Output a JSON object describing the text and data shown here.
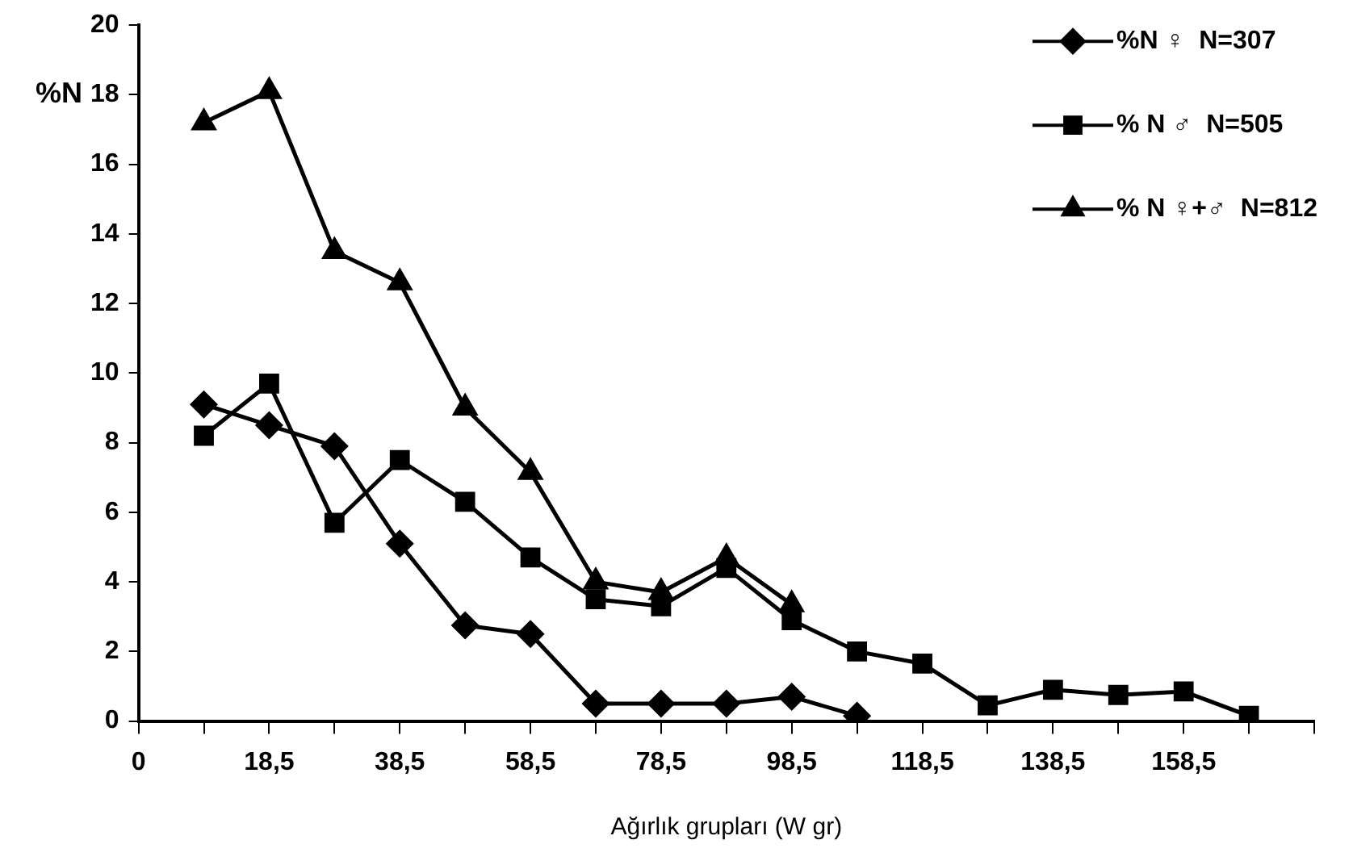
{
  "chart_data": {
    "type": "line",
    "xlabel": "Ağırlık grupları (W gr)",
    "ylabel": "%N",
    "categories": [
      "0",
      null,
      "18,5",
      null,
      "38,5",
      null,
      "58,5",
      null,
      "78,5",
      null,
      "98,5",
      null,
      "118,5",
      null,
      "138,5",
      null,
      "158,5",
      null,
      null
    ],
    "series": [
      {
        "name": "%N ♀  N=307",
        "color": "#000000",
        "marker": "diamond",
        "values": [
          null,
          9.1,
          8.5,
          7.9,
          5.1,
          2.75,
          2.5,
          0.5,
          0.5,
          0.5,
          0.7,
          0.15,
          null,
          null,
          null,
          null,
          null,
          null,
          null
        ]
      },
      {
        "name": "% N ♂  N=505",
        "color": "#000000",
        "marker": "square",
        "values": [
          null,
          8.2,
          9.7,
          5.7,
          7.5,
          6.3,
          4.7,
          3.5,
          3.3,
          4.4,
          2.9,
          2.0,
          1.65,
          0.45,
          0.9,
          0.75,
          0.85,
          0.15,
          null
        ]
      },
      {
        "name": "% N ♀+♂  N=812",
        "color": "#000000",
        "marker": "triangle",
        "values": [
          null,
          17.2,
          18.1,
          13.5,
          12.6,
          9.0,
          7.15,
          4.0,
          3.7,
          4.7,
          3.35,
          null,
          null,
          null,
          null,
          null,
          null,
          null,
          null
        ]
      }
    ],
    "ylim": [
      0,
      20
    ],
    "yticks": [
      0,
      2,
      4,
      6,
      8,
      10,
      12,
      14,
      16,
      18,
      20
    ],
    "grid": false,
    "legend": "top right",
    "line_style": "solid"
  }
}
